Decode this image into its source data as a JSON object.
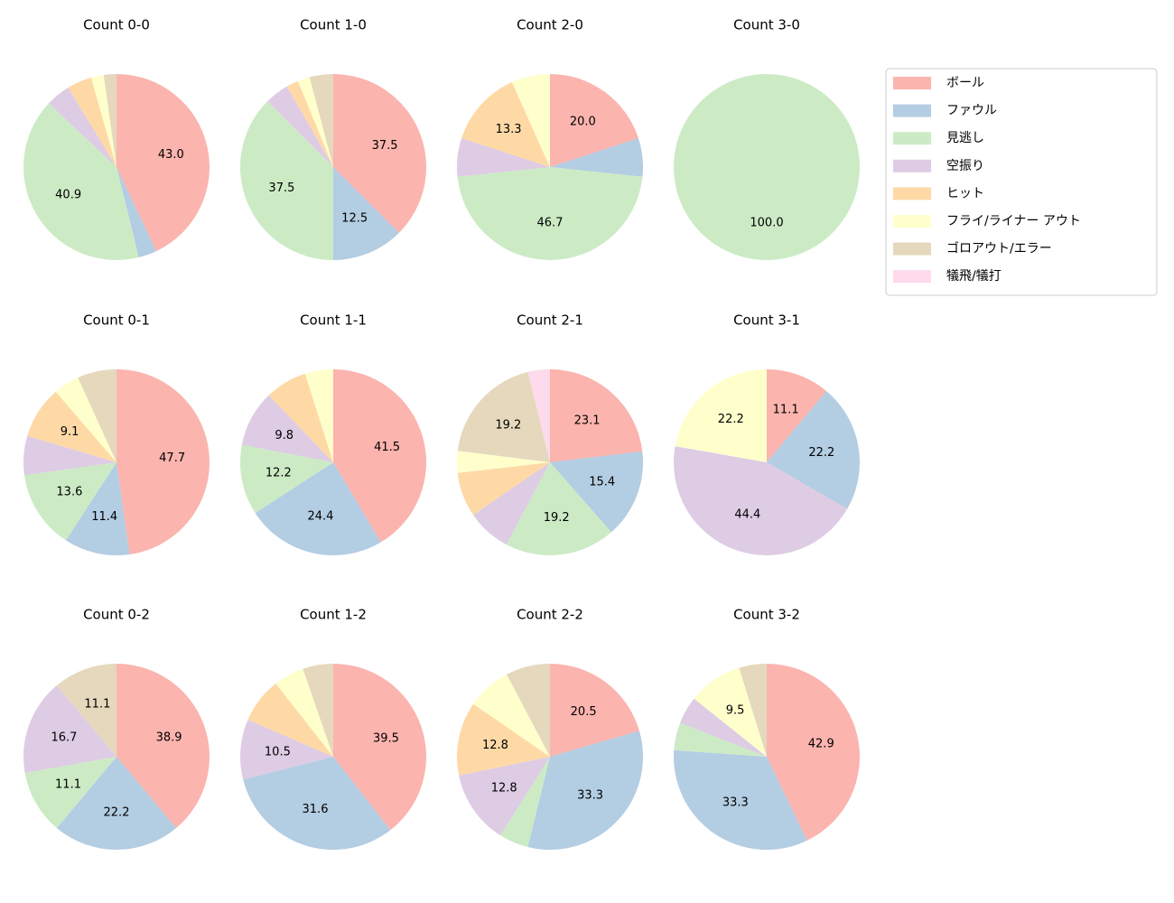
{
  "chart_data": [
    {
      "type": "pie",
      "title": "Count 0-0",
      "values": [
        43.0,
        3.2,
        40.9,
        4.3,
        4.3,
        2.2,
        2.2,
        0
      ],
      "value_labels": [
        "43.0",
        null,
        "40.9",
        null,
        null,
        null,
        null,
        null
      ]
    },
    {
      "type": "pie",
      "title": "Count 1-0",
      "values": [
        37.5,
        12.5,
        37.5,
        4.2,
        2.1,
        2.1,
        4.1,
        0
      ],
      "value_labels": [
        "37.5",
        "12.5",
        "37.5",
        null,
        null,
        null,
        null,
        null
      ]
    },
    {
      "type": "pie",
      "title": "Count 2-0",
      "values": [
        20.0,
        6.7,
        46.7,
        6.7,
        13.3,
        6.7,
        0,
        0
      ],
      "value_labels": [
        "20.0",
        null,
        "46.7",
        null,
        "13.3",
        null,
        null,
        null
      ]
    },
    {
      "type": "pie",
      "title": "Count 3-0",
      "values": [
        0,
        0,
        100.0,
        0,
        0,
        0,
        0,
        0
      ],
      "value_labels": [
        null,
        null,
        "100.0",
        null,
        null,
        null,
        null,
        null
      ]
    },
    {
      "type": "pie",
      "title": "Count 0-1",
      "values": [
        47.7,
        11.4,
        13.6,
        6.8,
        9.1,
        4.5,
        6.8,
        0
      ],
      "value_labels": [
        "47.7",
        "11.4",
        "13.6",
        null,
        "9.1",
        null,
        null,
        null
      ]
    },
    {
      "type": "pie",
      "title": "Count 1-1",
      "values": [
        41.5,
        24.4,
        12.2,
        9.8,
        7.3,
        4.9,
        0,
        0
      ],
      "value_labels": [
        "41.5",
        "24.4",
        "12.2",
        "9.8",
        null,
        null,
        null,
        null
      ]
    },
    {
      "type": "pie",
      "title": "Count 2-1",
      "values": [
        23.1,
        15.4,
        19.2,
        7.7,
        7.7,
        3.8,
        19.2,
        3.8
      ],
      "value_labels": [
        "23.1",
        "15.4",
        "19.2",
        null,
        null,
        null,
        "19.2",
        null
      ]
    },
    {
      "type": "pie",
      "title": "Count 3-1",
      "values": [
        11.1,
        22.2,
        0,
        44.4,
        0,
        22.2,
        0,
        0
      ],
      "value_labels": [
        "11.1",
        "22.2",
        null,
        "44.4",
        null,
        "22.2",
        null,
        null
      ]
    },
    {
      "type": "pie",
      "title": "Count 0-2",
      "values": [
        38.9,
        22.2,
        11.1,
        16.7,
        0,
        0,
        11.1,
        0
      ],
      "value_labels": [
        "38.9",
        "22.2",
        "11.1",
        "16.7",
        null,
        null,
        "11.1",
        null
      ]
    },
    {
      "type": "pie",
      "title": "Count 1-2",
      "values": [
        39.5,
        31.6,
        0,
        10.5,
        7.9,
        5.3,
        5.3,
        0
      ],
      "value_labels": [
        "39.5",
        "31.6",
        null,
        "10.5",
        null,
        null,
        null,
        null
      ]
    },
    {
      "type": "pie",
      "title": "Count 2-2",
      "values": [
        20.5,
        33.3,
        5.1,
        12.8,
        12.8,
        7.7,
        7.7,
        0
      ],
      "value_labels": [
        "20.5",
        "33.3",
        null,
        "12.8",
        "12.8",
        null,
        null,
        null
      ]
    },
    {
      "type": "pie",
      "title": "Count 3-2",
      "values": [
        42.9,
        33.3,
        4.8,
        4.8,
        0,
        9.5,
        4.8,
        0
      ],
      "value_labels": [
        "42.9",
        "33.3",
        null,
        null,
        null,
        "9.5",
        null,
        null
      ]
    }
  ],
  "legend": {
    "labels": [
      "ボール",
      "ファウル",
      "見逃し",
      "空振り",
      "ヒット",
      "フライ/ライナー アウト",
      "ゴロアウト/エラー",
      "犠飛/犠打"
    ],
    "colors": [
      "#fbb4ae",
      "#b3cde3",
      "#ccebc5",
      "#decbe4",
      "#fed9a6",
      "#ffffcc",
      "#e5d8bd",
      "#fddaec"
    ],
    "loc": "upper right"
  }
}
